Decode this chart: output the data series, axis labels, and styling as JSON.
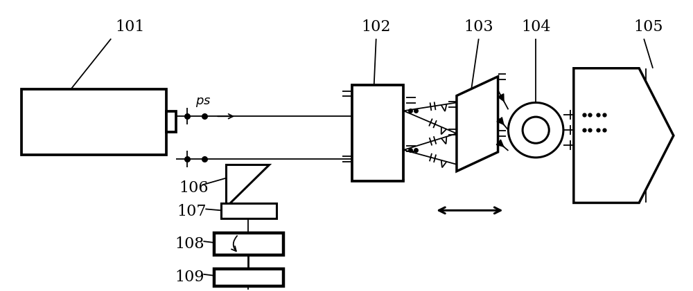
{
  "bg_color": "#ffffff",
  "line_color": "#000000",
  "lw": 2.2,
  "thin_lw": 1.3,
  "fig_width": 10.0,
  "fig_height": 4.21,
  "label_fontsize": 16
}
